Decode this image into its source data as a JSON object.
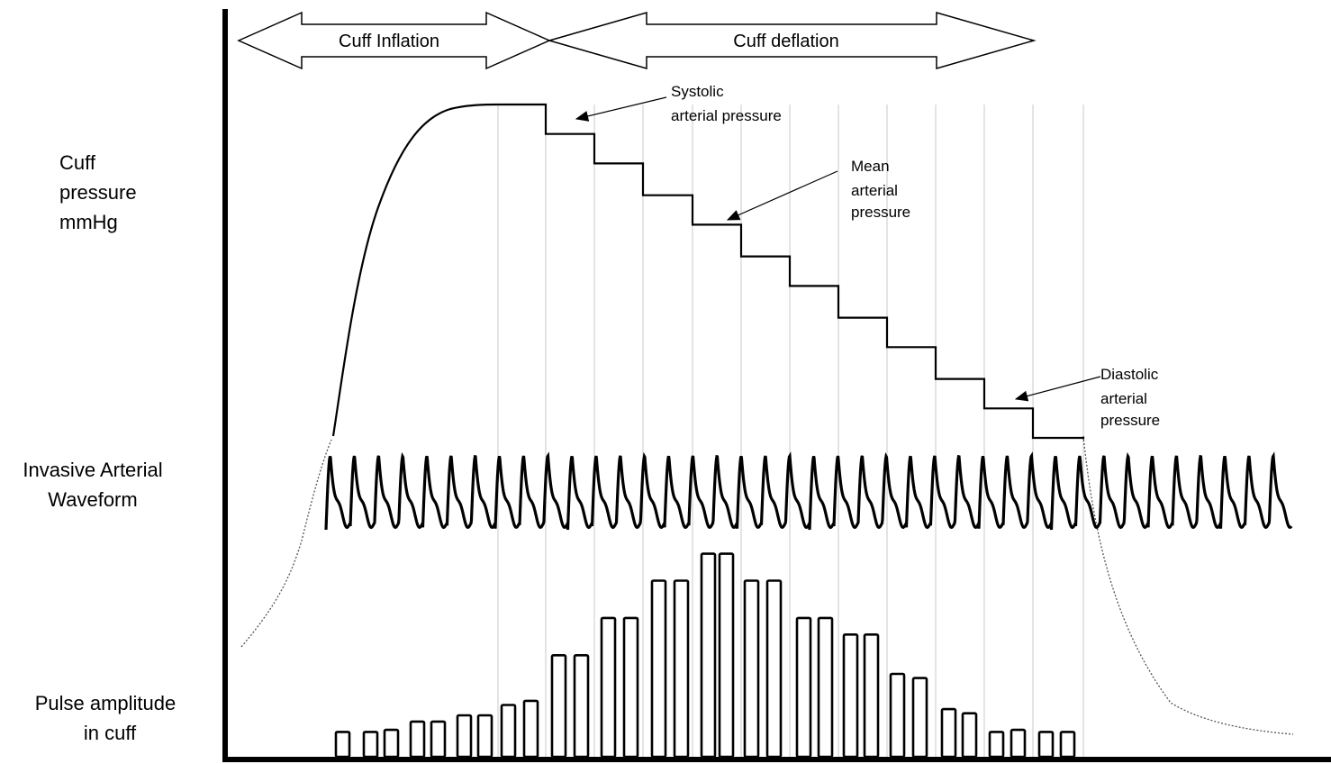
{
  "arrows": {
    "inflation": "Cuff Inflation",
    "deflation": "Cuff deflation"
  },
  "labels": {
    "cuff_pressure": [
      "Cuff",
      "pressure",
      "mmHg"
    ],
    "invasive_waveform": [
      "Invasive Arterial",
      "Waveform"
    ],
    "pulse_amplitude": [
      "Pulse amplitude",
      "in cuff"
    ]
  },
  "annotations": {
    "systolic": [
      "Systolic",
      "arterial pressure"
    ],
    "mean": [
      "Mean",
      "arterial",
      "pressure"
    ],
    "diastolic": [
      "Diastolic",
      "arterial",
      "pressure"
    ]
  },
  "cuff_steps": [
    1,
    0.935,
    0.87,
    0.8,
    0.735,
    0.665,
    0.6,
    0.53,
    0.465,
    0.395,
    0.33,
    0.265
  ],
  "pulse_amplitudes": [
    0.12,
    0.12,
    0.13,
    0.17,
    0.17,
    0.2,
    0.2,
    0.25,
    0.27,
    0.49,
    0.49,
    0.67,
    0.67,
    0.85,
    0.85,
    0.98,
    0.98,
    0.85,
    0.85,
    0.67,
    0.67,
    0.59,
    0.59,
    0.4,
    0.38,
    0.23,
    0.21,
    0.12,
    0.13,
    0.12,
    0.12
  ]
}
